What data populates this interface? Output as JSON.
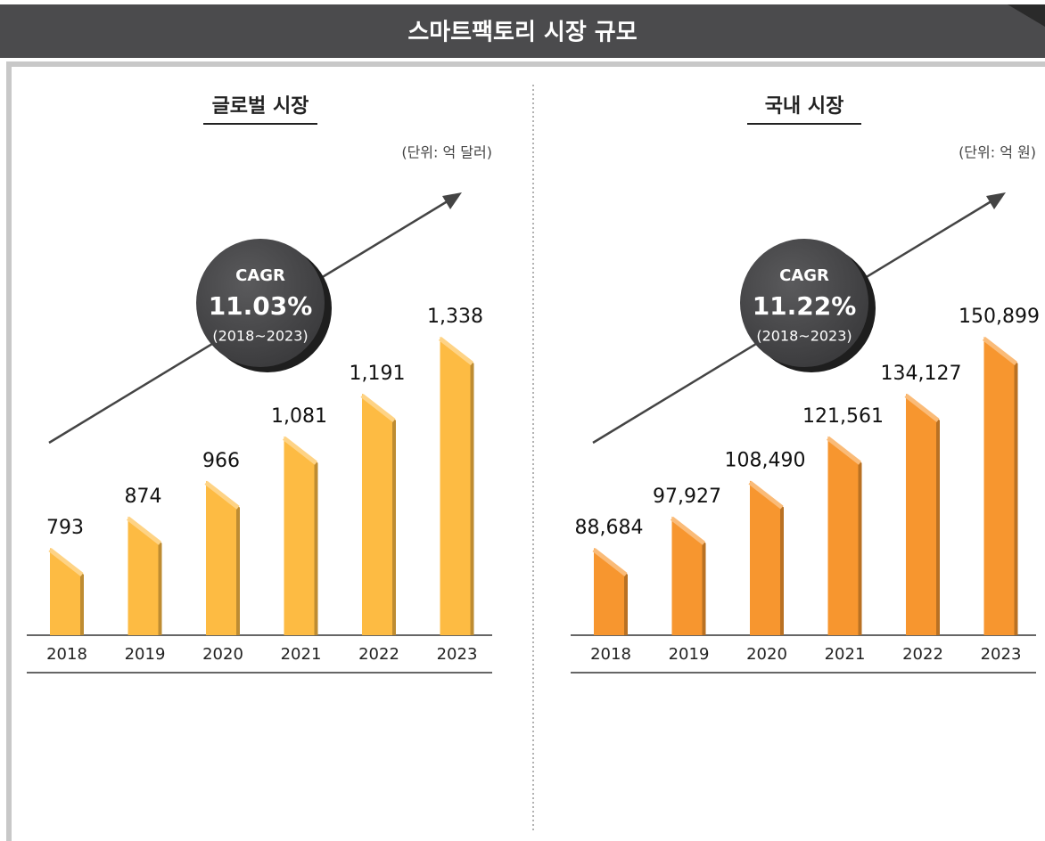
{
  "title": "스마트팩토리 시장 규모",
  "chart_data": [
    {
      "type": "bar",
      "title": "글로벌 시장",
      "unit": "(단위: 억 달러)",
      "categories": [
        "2018",
        "2019",
        "2020",
        "2021",
        "2022",
        "2023"
      ],
      "values": [
        793,
        874,
        966,
        1081,
        1191,
        1338
      ],
      "value_labels": [
        "793",
        "874",
        "966",
        "1,081",
        "1,191",
        "1,338"
      ],
      "color": "#fdbb43",
      "annotation": {
        "label": "CAGR",
        "value": "11.03%",
        "period": "(2018~2023)"
      }
    },
    {
      "type": "bar",
      "title": "국내 시장",
      "unit": "(단위: 억 원)",
      "categories": [
        "2018",
        "2019",
        "2020",
        "2021",
        "2022",
        "2023"
      ],
      "values": [
        88684,
        97927,
        108490,
        121561,
        134127,
        150899
      ],
      "value_labels": [
        "88,684",
        "97,927",
        "108,490",
        "121,561",
        "134,127",
        "150,899"
      ],
      "color": "#f7962f",
      "annotation": {
        "label": "CAGR",
        "value": "11.22%",
        "period": "(2018~2023)"
      }
    }
  ]
}
